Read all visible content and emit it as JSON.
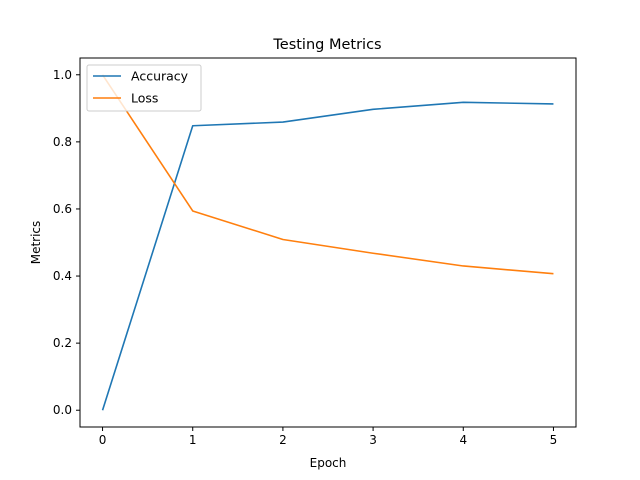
{
  "chart_data": {
    "type": "line",
    "title": "Testing Metrics",
    "xlabel": "Epoch",
    "ylabel": "Metrics",
    "x": [
      0,
      1,
      2,
      3,
      4,
      5
    ],
    "xlim": [
      -0.25,
      5.25
    ],
    "ylim": [
      -0.05,
      1.05
    ],
    "xticks": [
      "0",
      "1",
      "2",
      "3",
      "4",
      "5"
    ],
    "yticks": [
      "0.0",
      "0.2",
      "0.4",
      "0.6",
      "0.8",
      "1.0"
    ],
    "grid": false,
    "legend_position": "top-left",
    "series": [
      {
        "name": "Accuracy",
        "color": "#1f77b4",
        "values": [
          0.0,
          0.848,
          0.859,
          0.897,
          0.918,
          0.913
        ]
      },
      {
        "name": "Loss",
        "color": "#ff7f0e",
        "values": [
          1.0,
          0.594,
          0.509,
          0.468,
          0.43,
          0.407
        ]
      }
    ]
  }
}
